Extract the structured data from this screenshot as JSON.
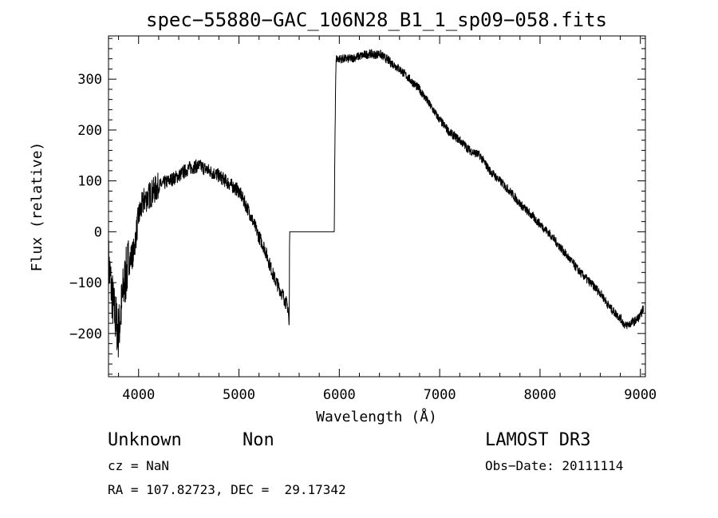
{
  "chart_data": {
    "type": "line",
    "title": "spec−55880−GAC_106N28_B1_1_sp09−058.fits",
    "xlabel": "Wavelength (Å)",
    "ylabel": "Flux (relative)",
    "xlim": [
      3700,
      9050
    ],
    "ylim": [
      -285,
      385
    ],
    "x_ticks": [
      4000,
      5000,
      6000,
      7000,
      8000,
      9000
    ],
    "y_ticks": [
      -200,
      -100,
      0,
      100,
      200,
      300
    ],
    "tick_labels": {
      "x": [
        "4000",
        "5000",
        "6000",
        "7000",
        "8000",
        "9000"
      ],
      "y": [
        "−200",
        "−100",
        "0",
        "100",
        "200",
        "300"
      ]
    },
    "grid": false,
    "line_color": "#000000",
    "series": [
      {
        "x": [
          3700,
          3750,
          3800,
          3850,
          3900,
          3950,
          4000,
          4050,
          4100,
          4150,
          4200,
          4300,
          4400,
          4500,
          4600,
          4700,
          4800,
          4900,
          5000,
          5050,
          5100,
          5150,
          5200,
          5250,
          5300,
          5350,
          5400,
          5450,
          5490,
          5500,
          5505,
          5950,
          5955,
          5965,
          5970,
          6000,
          6100,
          6200,
          6300,
          6350,
          6400,
          6500,
          6600,
          6700,
          6800,
          6900,
          7000,
          7100,
          7200,
          7300,
          7400,
          7500,
          7600,
          7650,
          7700,
          7800,
          7900,
          8000,
          8100,
          8200,
          8300,
          8400,
          8500,
          8600,
          8700,
          8800,
          8850,
          8900,
          8950,
          9000,
          9030
        ],
        "y": [
          -60,
          -150,
          -200,
          -110,
          -60,
          -40,
          30,
          60,
          70,
          80,
          90,
          100,
          110,
          125,
          130,
          120,
          110,
          95,
          80,
          60,
          40,
          15,
          -10,
          -30,
          -60,
          -90,
          -110,
          -130,
          -150,
          -190,
          0,
          0,
          150,
          320,
          340,
          340,
          340,
          345,
          350,
          348,
          350,
          335,
          320,
          300,
          280,
          250,
          220,
          195,
          180,
          160,
          150,
          120,
          100,
          90,
          80,
          55,
          35,
          15,
          -5,
          -30,
          -55,
          -80,
          -100,
          -120,
          -150,
          -170,
          -185,
          -180,
          -175,
          -165,
          -150
        ]
      }
    ]
  },
  "info": {
    "object_class": "Unknown",
    "object_subclass": "Non",
    "survey": "LAMOST DR3",
    "cz": "cz = NaN",
    "obs_date": "Obs−Date: 20111114",
    "coords": "RA = 107.82723, DEC =  29.17342"
  }
}
